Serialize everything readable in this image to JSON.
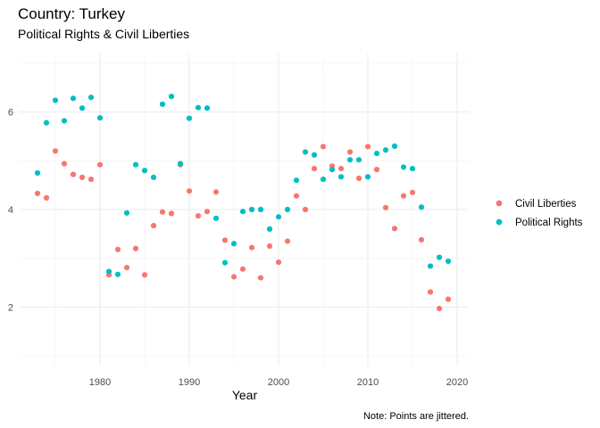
{
  "chart_data": {
    "type": "scatter",
    "title": "Country: Turkey",
    "subtitle": "Political Rights & Civil Liberties",
    "xlabel": "Year",
    "ylabel": "",
    "caption": "Note: Points are jittered.",
    "xlim": [
      1971,
      2021.3
    ],
    "ylim": [
      0.8,
      7.2
    ],
    "xticks": [
      1980,
      1990,
      2000,
      2010,
      2020
    ],
    "yticks": [
      2,
      4,
      6
    ],
    "grid": true,
    "legend_position": "right",
    "series": [
      {
        "name": "Civil Liberties",
        "color": "#F8766D",
        "points": [
          [
            1973,
            4.33
          ],
          [
            1974,
            4.24
          ],
          [
            1975,
            5.2
          ],
          [
            1976,
            4.94
          ],
          [
            1977,
            4.72
          ],
          [
            1978,
            4.66
          ],
          [
            1979,
            4.62
          ],
          [
            1980,
            4.92
          ],
          [
            1981,
            2.66
          ],
          [
            1982,
            3.18
          ],
          [
            1983,
            2.81
          ],
          [
            1984,
            3.2
          ],
          [
            1985,
            2.66
          ],
          [
            1986,
            3.67
          ],
          [
            1987,
            3.95
          ],
          [
            1988,
            3.92
          ],
          [
            1989,
            4.92
          ],
          [
            1990,
            4.38
          ],
          [
            1991,
            3.87
          ],
          [
            1992,
            3.96
          ],
          [
            1993,
            4.36
          ],
          [
            1994,
            3.37
          ],
          [
            1995,
            2.62
          ],
          [
            1996,
            2.78
          ],
          [
            1997,
            3.22
          ],
          [
            1998,
            2.6
          ],
          [
            1999,
            3.25
          ],
          [
            2000,
            2.92
          ],
          [
            2001,
            3.35
          ],
          [
            2002,
            4.28
          ],
          [
            2003,
            4.0
          ],
          [
            2004,
            4.84
          ],
          [
            2005,
            5.29
          ],
          [
            2006,
            4.89
          ],
          [
            2007,
            4.84
          ],
          [
            2008,
            5.18
          ],
          [
            2009,
            4.64
          ],
          [
            2010,
            5.29
          ],
          [
            2011,
            4.82
          ],
          [
            2012,
            4.04
          ],
          [
            2013,
            3.61
          ],
          [
            2014,
            4.28
          ],
          [
            2015,
            4.35
          ],
          [
            2016,
            3.38
          ],
          [
            2017,
            2.31
          ],
          [
            2018,
            1.97
          ],
          [
            2019,
            2.16
          ]
        ]
      },
      {
        "name": "Political Rights",
        "color": "#00BFC4",
        "points": [
          [
            1973,
            4.75
          ],
          [
            1974,
            5.78
          ],
          [
            1975,
            6.24
          ],
          [
            1976,
            5.82
          ],
          [
            1977,
            6.28
          ],
          [
            1978,
            6.08
          ],
          [
            1979,
            6.3
          ],
          [
            1980,
            5.88
          ],
          [
            1981,
            2.73
          ],
          [
            1982,
            2.67
          ],
          [
            1983,
            3.93
          ],
          [
            1984,
            4.92
          ],
          [
            1985,
            4.8
          ],
          [
            1986,
            4.66
          ],
          [
            1987,
            6.16
          ],
          [
            1988,
            6.32
          ],
          [
            1989,
            4.94
          ],
          [
            1990,
            5.87
          ],
          [
            1991,
            6.09
          ],
          [
            1992,
            6.08
          ],
          [
            1993,
            3.82
          ],
          [
            1994,
            2.91
          ],
          [
            1995,
            3.3
          ],
          [
            1996,
            3.96
          ],
          [
            1997,
            4.0
          ],
          [
            1998,
            4.0
          ],
          [
            1999,
            3.6
          ],
          [
            2000,
            3.85
          ],
          [
            2001,
            4.0
          ],
          [
            2002,
            4.6
          ],
          [
            2003,
            5.18
          ],
          [
            2004,
            5.12
          ],
          [
            2005,
            4.62
          ],
          [
            2006,
            4.82
          ],
          [
            2007,
            4.67
          ],
          [
            2008,
            5.02
          ],
          [
            2009,
            5.02
          ],
          [
            2010,
            4.67
          ],
          [
            2011,
            5.15
          ],
          [
            2012,
            5.22
          ],
          [
            2013,
            5.3
          ],
          [
            2014,
            4.87
          ],
          [
            2015,
            4.84
          ],
          [
            2016,
            4.05
          ],
          [
            2017,
            2.84
          ],
          [
            2018,
            3.02
          ],
          [
            2019,
            2.94
          ]
        ]
      }
    ]
  }
}
